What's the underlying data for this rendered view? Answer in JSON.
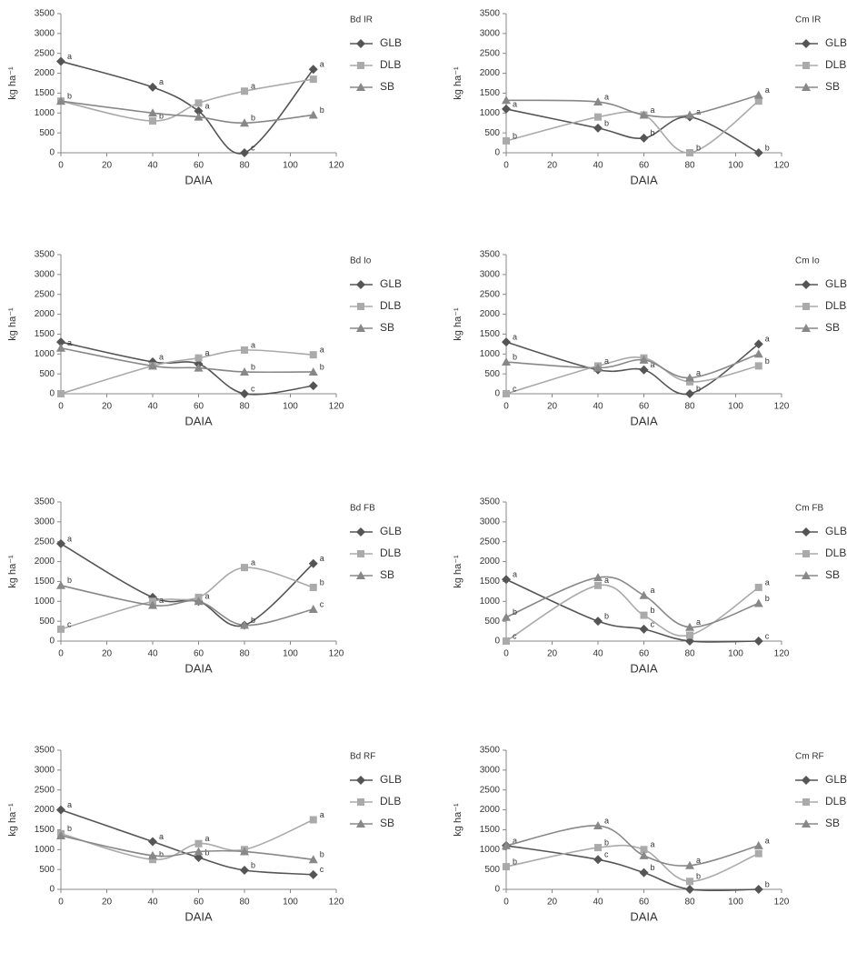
{
  "chart_data": [
    {
      "type": "line",
      "title": "Bd IR",
      "xlabel": "DAIA",
      "ylabel": "kg ha⁻¹",
      "x": [
        0,
        40,
        60,
        80,
        110
      ],
      "xlim": [
        0,
        120
      ],
      "xticks": [
        0,
        20,
        40,
        60,
        80,
        100,
        120
      ],
      "ylim": [
        0,
        3500
      ],
      "yticks": [
        0,
        500,
        1000,
        1500,
        2000,
        2500,
        3000,
        3500
      ],
      "series": [
        {
          "name": "GLB",
          "color": "#555555",
          "marker": "diamond",
          "values": [
            2300,
            1650,
            1050,
            0,
            2100
          ],
          "labels": [
            "a",
            "a",
            "a",
            "c",
            "a"
          ]
        },
        {
          "name": "DLB",
          "color": "#aaaaaa",
          "marker": "square",
          "values": [
            1300,
            800,
            1250,
            1550,
            1850
          ],
          "labels": [
            null,
            "b",
            null,
            "a",
            null
          ]
        },
        {
          "name": "SB",
          "color": "#888888",
          "marker": "triangle",
          "values": [
            1300,
            1000,
            900,
            750,
            950
          ],
          "labels": [
            "b",
            null,
            null,
            "b",
            "b"
          ]
        }
      ]
    },
    {
      "type": "line",
      "title": "Cm IR",
      "xlabel": "DAIA",
      "ylabel": "kg ha⁻¹",
      "x": [
        0,
        40,
        60,
        80,
        110
      ],
      "xlim": [
        0,
        120
      ],
      "xticks": [
        0,
        20,
        40,
        60,
        80,
        100,
        120
      ],
      "ylim": [
        0,
        3500
      ],
      "yticks": [
        0,
        500,
        1000,
        1500,
        2000,
        2500,
        3000,
        3500
      ],
      "series": [
        {
          "name": "GLB",
          "color": "#555555",
          "marker": "diamond",
          "values": [
            1100,
            620,
            370,
            900,
            0
          ],
          "labels": [
            "a",
            "b",
            "b",
            "a",
            "b"
          ]
        },
        {
          "name": "DLB",
          "color": "#aaaaaa",
          "marker": "square",
          "values": [
            300,
            900,
            950,
            0,
            1300
          ],
          "labels": [
            "b",
            null,
            "a",
            "b",
            null
          ]
        },
        {
          "name": "SB",
          "color": "#888888",
          "marker": "triangle",
          "values": [
            1320,
            1280,
            950,
            950,
            1450
          ],
          "labels": [
            null,
            "a",
            null,
            null,
            "a"
          ]
        }
      ]
    },
    {
      "type": "line",
      "title": "Bd Io",
      "xlabel": "DAIA",
      "ylabel": "kg ha⁻¹",
      "x": [
        0,
        40,
        60,
        80,
        110
      ],
      "xlim": [
        0,
        120
      ],
      "xticks": [
        0,
        20,
        40,
        60,
        80,
        100,
        120
      ],
      "ylim": [
        0,
        3500
      ],
      "yticks": [
        0,
        500,
        1000,
        1500,
        2000,
        2500,
        3000,
        3500
      ],
      "series": [
        {
          "name": "GLB",
          "color": "#555555",
          "marker": "diamond",
          "values": [
            1300,
            800,
            750,
            0,
            200
          ],
          "labels": [
            null,
            "a",
            null,
            "c",
            null
          ]
        },
        {
          "name": "DLB",
          "color": "#aaaaaa",
          "marker": "square",
          "values": [
            0,
            700,
            900,
            1100,
            980
          ],
          "labels": [
            null,
            null,
            "a",
            "a",
            "a"
          ]
        },
        {
          "name": "SB",
          "color": "#888888",
          "marker": "triangle",
          "values": [
            1150,
            700,
            650,
            550,
            550
          ],
          "labels": [
            "a",
            null,
            null,
            "b",
            "b"
          ]
        }
      ]
    },
    {
      "type": "line",
      "title": "Cm Io",
      "xlabel": "DAIA",
      "ylabel": "kg ha⁻¹",
      "x": [
        0,
        40,
        60,
        80,
        110
      ],
      "xlim": [
        0,
        120
      ],
      "xticks": [
        0,
        20,
        40,
        60,
        80,
        100,
        120
      ],
      "ylim": [
        0,
        3500
      ],
      "yticks": [
        0,
        500,
        1000,
        1500,
        2000,
        2500,
        3000,
        3500
      ],
      "series": [
        {
          "name": "GLB",
          "color": "#555555",
          "marker": "diamond",
          "values": [
            1300,
            600,
            600,
            0,
            1250
          ],
          "labels": [
            "a",
            null,
            "a",
            "b",
            "a"
          ]
        },
        {
          "name": "DLB",
          "color": "#aaaaaa",
          "marker": "square",
          "values": [
            0,
            700,
            900,
            300,
            700
          ],
          "labels": [
            "c",
            "a",
            null,
            null,
            "b"
          ]
        },
        {
          "name": "SB",
          "color": "#888888",
          "marker": "triangle",
          "values": [
            800,
            650,
            850,
            400,
            1000
          ],
          "labels": [
            "b",
            null,
            null,
            "a",
            null
          ]
        }
      ]
    },
    {
      "type": "line",
      "title": "Bd FB",
      "xlabel": "DAIA",
      "ylabel": "kg ha⁻¹",
      "x": [
        0,
        40,
        60,
        80,
        110
      ],
      "xlim": [
        0,
        120
      ],
      "xticks": [
        0,
        20,
        40,
        60,
        80,
        100,
        120
      ],
      "ylim": [
        0,
        3500
      ],
      "yticks": [
        0,
        500,
        1000,
        1500,
        2000,
        2500,
        3000,
        3500
      ],
      "series": [
        {
          "name": "GLB",
          "color": "#555555",
          "marker": "diamond",
          "values": [
            2450,
            1100,
            1000,
            400,
            1950
          ],
          "labels": [
            "a",
            null,
            "a",
            null,
            "a"
          ]
        },
        {
          "name": "DLB",
          "color": "#aaaaaa",
          "marker": "square",
          "values": [
            300,
            1000,
            1100,
            1850,
            1350
          ],
          "labels": [
            "c",
            null,
            null,
            "a",
            "b"
          ]
        },
        {
          "name": "SB",
          "color": "#888888",
          "marker": "triangle",
          "values": [
            1400,
            900,
            1000,
            400,
            800
          ],
          "labels": [
            "b",
            "a",
            null,
            "b",
            "c"
          ]
        }
      ]
    },
    {
      "type": "line",
      "title": "Cm FB",
      "xlabel": "DAIA",
      "ylabel": "kg ha⁻¹",
      "x": [
        0,
        40,
        60,
        80,
        110
      ],
      "xlim": [
        0,
        120
      ],
      "xticks": [
        0,
        20,
        40,
        60,
        80,
        100,
        120
      ],
      "ylim": [
        0,
        3500
      ],
      "yticks": [
        0,
        500,
        1000,
        1500,
        2000,
        2500,
        3000,
        3500
      ],
      "series": [
        {
          "name": "GLB",
          "color": "#555555",
          "marker": "diamond",
          "values": [
            1550,
            500,
            300,
            0,
            0
          ],
          "labels": [
            "a",
            "b",
            "c",
            null,
            "c"
          ]
        },
        {
          "name": "DLB",
          "color": "#aaaaaa",
          "marker": "square",
          "values": [
            0,
            1400,
            650,
            150,
            1350
          ],
          "labels": [
            "c",
            "a",
            "b",
            null,
            "a"
          ]
        },
        {
          "name": "SB",
          "color": "#888888",
          "marker": "triangle",
          "values": [
            600,
            1600,
            1150,
            350,
            950
          ],
          "labels": [
            "b",
            null,
            "a",
            "a",
            "b"
          ]
        }
      ]
    },
    {
      "type": "line",
      "title": "Bd RF",
      "xlabel": "DAIA",
      "ylabel": "kg ha⁻¹",
      "x": [
        0,
        40,
        60,
        80,
        110
      ],
      "xlim": [
        0,
        120
      ],
      "xticks": [
        0,
        20,
        40,
        60,
        80,
        100,
        120
      ],
      "ylim": [
        0,
        3500
      ],
      "yticks": [
        0,
        500,
        1000,
        1500,
        2000,
        2500,
        3000,
        3500
      ],
      "series": [
        {
          "name": "GLB",
          "color": "#555555",
          "marker": "diamond",
          "values": [
            2000,
            1200,
            800,
            480,
            370
          ],
          "labels": [
            "a",
            "a",
            "b",
            "b",
            "c"
          ]
        },
        {
          "name": "DLB",
          "color": "#aaaaaa",
          "marker": "square",
          "values": [
            1400,
            750,
            1150,
            1000,
            1750
          ],
          "labels": [
            "b",
            "b",
            "a",
            null,
            "a"
          ]
        },
        {
          "name": "SB",
          "color": "#888888",
          "marker": "triangle",
          "values": [
            1350,
            850,
            950,
            950,
            750
          ],
          "labels": [
            null,
            null,
            null,
            null,
            "b"
          ]
        }
      ]
    },
    {
      "type": "line",
      "title": "Cm RF",
      "xlabel": "DAIA",
      "ylabel": "kg ha⁻¹",
      "x": [
        0,
        40,
        60,
        80,
        110
      ],
      "xlim": [
        0,
        120
      ],
      "xticks": [
        0,
        20,
        40,
        60,
        80,
        100,
        120
      ],
      "ylim": [
        0,
        3500
      ],
      "yticks": [
        0,
        500,
        1000,
        1500,
        2000,
        2500,
        3000,
        3500
      ],
      "series": [
        {
          "name": "GLB",
          "color": "#555555",
          "marker": "diamond",
          "values": [
            1100,
            750,
            420,
            0,
            0
          ],
          "labels": [
            "a",
            "c",
            "b",
            null,
            "b"
          ]
        },
        {
          "name": "DLB",
          "color": "#aaaaaa",
          "marker": "square",
          "values": [
            570,
            1050,
            1000,
            200,
            900
          ],
          "labels": [
            "b",
            "b",
            "a",
            "b",
            null
          ]
        },
        {
          "name": "SB",
          "color": "#888888",
          "marker": "triangle",
          "values": [
            1100,
            1600,
            850,
            600,
            1100
          ],
          "labels": [
            null,
            "a",
            null,
            "a",
            "a"
          ]
        }
      ]
    }
  ]
}
